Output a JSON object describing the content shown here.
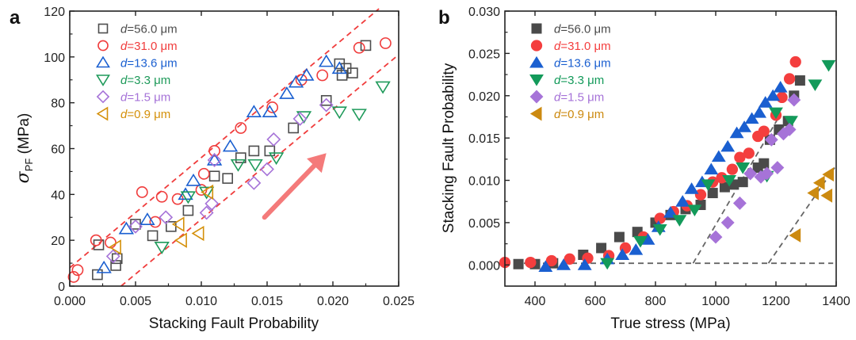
{
  "chart_data": [
    {
      "panel": "a",
      "type": "scatter",
      "title": "",
      "xlabel": "Stacking Fault Probability",
      "ylabel": "σPF (MPa)",
      "ylabel_main": "σ",
      "ylabel_sub": "PF",
      "ylabel_unit": " (MPa)",
      "xlim": [
        0.0,
        0.025
      ],
      "ylim": [
        0,
        120
      ],
      "xticks": [
        0.0,
        0.005,
        0.01,
        0.015,
        0.02,
        0.025
      ],
      "xtick_labels": [
        "0.000",
        "0.005",
        "0.010",
        "0.015",
        "0.020",
        "0.025"
      ],
      "yticks": [
        0,
        20,
        40,
        60,
        80,
        100,
        120
      ],
      "ytick_labels": [
        "0",
        "20",
        "40",
        "60",
        "80",
        "100",
        "120"
      ],
      "marker_fill": "open",
      "legend_position": "top-left",
      "series": [
        {
          "name": "d=56.0 μm",
          "prefix": "d",
          "label": "=56.0 μm",
          "marker": "square",
          "color": "#4d4d4d",
          "x": [
            0.0021,
            0.0022,
            0.0035,
            0.0036,
            0.005,
            0.0063,
            0.0077,
            0.009,
            0.011,
            0.012,
            0.013,
            0.014,
            0.0152,
            0.017,
            0.0195,
            0.0205,
            0.0207,
            0.021,
            0.0215,
            0.0225
          ],
          "y": [
            5,
            18,
            9,
            12,
            27,
            22,
            26,
            33,
            48,
            47,
            56,
            59,
            59,
            69,
            81,
            97,
            92,
            95,
            93,
            105
          ]
        },
        {
          "name": "d=31.0 μm",
          "prefix": "d",
          "label": "=31.0 μm",
          "marker": "circle",
          "color": "#f03c3c",
          "x": [
            0.0003,
            0.0006,
            0.002,
            0.0031,
            0.0055,
            0.0065,
            0.007,
            0.0082,
            0.01,
            0.0102,
            0.011,
            0.013,
            0.0154,
            0.0176,
            0.0192,
            0.022,
            0.024
          ],
          "y": [
            4,
            7,
            20,
            19,
            41,
            28,
            39,
            38,
            42,
            49,
            59,
            69,
            78,
            90,
            92,
            104,
            106
          ]
        },
        {
          "name": "d=13.6 μm",
          "prefix": "d",
          "label": "=13.6 μm",
          "marker": "triangle-up",
          "color": "#1a5fd0",
          "x": [
            0.0026,
            0.0043,
            0.0059,
            0.0088,
            0.0094,
            0.011,
            0.0122,
            0.014,
            0.0152,
            0.0165,
            0.0172,
            0.018,
            0.0195,
            0.0205
          ],
          "y": [
            8,
            25,
            29,
            40,
            46,
            55,
            61,
            76,
            76,
            84,
            89,
            92,
            98,
            95
          ]
        },
        {
          "name": "d=3.3 μm",
          "prefix": "d",
          "label": "=3.3 μm",
          "marker": "triangle-down",
          "color": "#1e9a5a",
          "x": [
            0.007,
            0.009,
            0.0104,
            0.0128,
            0.0141,
            0.0157,
            0.0178,
            0.0205,
            0.022,
            0.0238
          ],
          "y": [
            17,
            39,
            41,
            53,
            53,
            56,
            74,
            76,
            75,
            87
          ]
        },
        {
          "name": "d=1.5 μm",
          "prefix": "d",
          "label": "=1.5 μm",
          "marker": "diamond",
          "color": "#a673d8",
          "x": [
            0.0033,
            0.005,
            0.0073,
            0.0104,
            0.0108,
            0.011,
            0.014,
            0.015,
            0.0155,
            0.0175,
            0.0195
          ],
          "y": [
            13,
            26,
            30,
            32,
            36,
            55,
            45,
            51,
            64,
            73,
            79
          ]
        },
        {
          "name": "d=0.9 μm",
          "prefix": "d",
          "label": "=0.9 μm",
          "marker": "triangle-left",
          "color": "#d4900a",
          "x": [
            0.0035,
            0.0085,
            0.0083,
            0.0098,
            0.0105
          ],
          "y": [
            17,
            20,
            27,
            23,
            41
          ]
        }
      ],
      "reference_lines": [
        {
          "style": "dashed",
          "color": "#f03c3c",
          "x": [
            0.0,
            0.0235
          ],
          "y": [
            8,
            121
          ]
        },
        {
          "style": "dashed",
          "color": "#f03c3c",
          "x": [
            0.0039,
            0.025
          ],
          "y": [
            0,
            101
          ]
        }
      ],
      "annotations": [
        {
          "type": "arrow",
          "color": "#f47a7a",
          "from": [
            0.0148,
            30
          ],
          "to": [
            0.0195,
            58
          ],
          "meaning": "increasing trend"
        }
      ]
    },
    {
      "panel": "b",
      "type": "scatter",
      "title": "",
      "xlabel": "True stress (MPa)",
      "ylabel": "Stacking Fault Probability",
      "xlim": [
        300,
        1400
      ],
      "ylim": [
        -0.0025,
        0.03
      ],
      "xticks": [
        400,
        600,
        800,
        1000,
        1200,
        1400
      ],
      "xtick_labels": [
        "400",
        "600",
        "800",
        "1000",
        "1200",
        "1400"
      ],
      "yticks": [
        0.0,
        0.005,
        0.01,
        0.015,
        0.02,
        0.025,
        0.03
      ],
      "ytick_labels": [
        "0.000",
        "0.005",
        "0.010",
        "0.015",
        "0.020",
        "0.025",
        "0.030"
      ],
      "marker_fill": "filled",
      "legend_position": "top-left",
      "series": [
        {
          "name": "d=56.0 μm",
          "prefix": "d",
          "label": "=56.0 μm",
          "marker": "square",
          "color": "#4a4a4a",
          "x": [
            345,
            400,
            460,
            560,
            620,
            680,
            740,
            800,
            850,
            900,
            950,
            990,
            1030,
            1060,
            1090,
            1140,
            1160,
            1180,
            1210,
            1240,
            1260,
            1280
          ],
          "y": [
            0.0001,
            0.0001,
            0.0002,
            0.0012,
            0.002,
            0.0033,
            0.0039,
            0.005,
            0.0059,
            0.0066,
            0.0071,
            0.0085,
            0.0092,
            0.0095,
            0.0098,
            0.0115,
            0.012,
            0.0148,
            0.016,
            0.017,
            0.02,
            0.0218
          ]
        },
        {
          "name": "d=31.0 μm",
          "prefix": "d",
          "label": "=31.0 μm",
          "marker": "circle",
          "color": "#f43e3e",
          "x": [
            300,
            385,
            455,
            515,
            575,
            645,
            700,
            760,
            815,
            860,
            905,
            950,
            990,
            1020,
            1055,
            1080,
            1110,
            1140,
            1160,
            1200,
            1220,
            1245,
            1265
          ],
          "y": [
            0.0003,
            0.0003,
            0.0005,
            0.0007,
            0.0008,
            0.0011,
            0.002,
            0.0033,
            0.0055,
            0.0063,
            0.007,
            0.0083,
            0.0098,
            0.0103,
            0.0113,
            0.0127,
            0.0132,
            0.0152,
            0.0158,
            0.0177,
            0.0198,
            0.022,
            0.024
          ]
        },
        {
          "name": "d=13.6 μm",
          "prefix": "d",
          "label": "=13.6 μm",
          "marker": "triangle-up",
          "color": "#1a5fd0",
          "x": [
            435,
            495,
            565,
            640,
            690,
            735,
            775,
            810,
            850,
            890,
            920,
            955,
            985,
            1010,
            1040,
            1070,
            1095,
            1120,
            1145,
            1165,
            1190,
            1215
          ],
          "y": [
            -0.0002,
            0.0,
            0.0,
            0.0007,
            0.0012,
            0.0018,
            0.003,
            0.0045,
            0.0062,
            0.0075,
            0.009,
            0.0098,
            0.0113,
            0.0128,
            0.014,
            0.0156,
            0.0163,
            0.0173,
            0.018,
            0.0192,
            0.02,
            0.021
          ]
        },
        {
          "name": "d=3.3 μm",
          "prefix": "d",
          "label": "=3.3 μm",
          "marker": "triangle-down",
          "color": "#139a5a",
          "x": [
            640,
            750,
            815,
            880,
            930,
            975,
            1045,
            1090,
            1170,
            1200,
            1250,
            1330,
            1375
          ],
          "y": [
            0.0002,
            0.0028,
            0.0042,
            0.0053,
            0.0065,
            0.0095,
            0.01,
            0.0115,
            0.0105,
            0.018,
            0.017,
            0.0213,
            0.0236
          ]
        },
        {
          "name": "d=1.5 μm",
          "prefix": "d",
          "label": "=1.5 μm",
          "marker": "diamond",
          "color": "#a673d8",
          "x": [
            1000,
            1040,
            1080,
            1115,
            1150,
            1170,
            1185,
            1205,
            1225,
            1245,
            1260
          ],
          "y": [
            0.0033,
            0.005,
            0.0073,
            0.0108,
            0.0104,
            0.0108,
            0.0148,
            0.0115,
            0.0155,
            0.016,
            0.0195
          ]
        },
        {
          "name": "d=0.9 μm",
          "prefix": "d",
          "label": "=0.9 μm",
          "marker": "triangle-left",
          "color": "#cc8a10",
          "x": [
            1265,
            1325,
            1345,
            1370,
            1375
          ],
          "y": [
            0.0035,
            0.0085,
            0.0097,
            0.0082,
            0.0107
          ]
        }
      ],
      "reference_lines": [
        {
          "style": "dashed",
          "color": "#666666",
          "x": [
            300,
            1390
          ],
          "y": [
            0.0002,
            0.0002
          ]
        },
        {
          "style": "dashed",
          "color": "#666666",
          "x": [
            925,
            1210
          ],
          "y": [
            0.0002,
            0.0175
          ]
        },
        {
          "style": "dashed",
          "color": "#666666",
          "x": [
            1175,
            1395
          ],
          "y": [
            0.0002,
            0.0115
          ]
        }
      ]
    }
  ]
}
